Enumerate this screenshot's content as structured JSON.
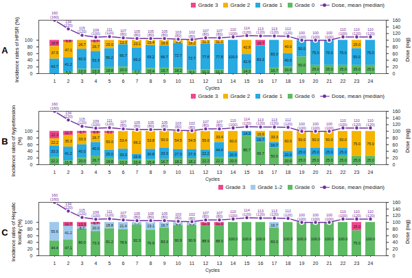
{
  "chart_data": [
    {
      "type": "bar",
      "title": "A",
      "stacked": true,
      "data_labels": true,
      "x_label": "Cycles",
      "y_label": "Incidence rates of HFSR (%)",
      "y2_label": "Dose (mg)",
      "categories": [
        1,
        2,
        3,
        4,
        5,
        6,
        7,
        8,
        9,
        10,
        11,
        12,
        13,
        14,
        15,
        16,
        17,
        18,
        19,
        20,
        21,
        22,
        23,
        24
      ],
      "ylim": [
        0,
        160
      ],
      "yticks": [
        0,
        20,
        40,
        60,
        80,
        100
      ],
      "y2lim": [
        0,
        160
      ],
      "y2ticks": [
        0,
        20,
        40,
        60,
        80,
        100,
        120,
        140,
        160
      ],
      "series": [
        {
          "name": "Grade 3",
          "color": "#f0468c",
          "values": [
            18.8,
            5.8,
            0,
            6.7,
            0,
            0,
            0,
            0,
            0,
            0,
            0,
            0,
            0,
            0,
            0,
            16.7,
            0,
            0,
            0,
            0,
            0,
            0,
            0,
            0
          ],
          "value_labels": [
            "18.8",
            "5.8",
            null,
            "6.7",
            null,
            null,
            null,
            null,
            null,
            null,
            null,
            null,
            null,
            null,
            null,
            "16.7",
            null,
            null,
            null,
            null,
            null,
            null,
            null,
            null
          ]
        },
        {
          "name": "Grade 2",
          "color": "#f5b400",
          "values": [
            37.5,
            47.1,
            26.7,
            26.7,
            25.0,
            13.3,
            23.1,
            15.4,
            16.6,
            9.1,
            18.2,
            11.1,
            11.1,
            0,
            42.8,
            0,
            0,
            40.0,
            0,
            0,
            0,
            0,
            25.0,
            0
          ],
          "value_labels": [
            "37.5",
            "47.1",
            "26.7",
            "26.7",
            "25.0",
            "13.3",
            "23.1",
            "15.4",
            "16.6",
            "9.1",
            "18.2",
            "11.1",
            "11.1",
            null,
            "42.8",
            null,
            null,
            "40.0",
            null,
            null,
            null,
            null,
            "25.0",
            null
          ]
        },
        {
          "name": "Grade 1",
          "color": "#27a9e1",
          "values": [
            43.7,
            41.2,
            60.0,
            53.3,
            56.2,
            66.7,
            69.2,
            69.2,
            66.7,
            72.7,
            72.7,
            77.8,
            77.8,
            100.0,
            42.9,
            83.3,
            83.3,
            40.0,
            50.0,
            75.0,
            75.0,
            75.0,
            50.0,
            75.0
          ],
          "value_labels": [
            "43.7",
            "41.2",
            "60.0",
            "53.3",
            "56.2",
            "66.7",
            "69.2",
            "69.2",
            "66.7",
            "72.7",
            "72.7",
            "77.8",
            "77.8",
            "100.0",
            "42.9",
            "83.3",
            "83.3",
            "40.0",
            "50.0",
            "75.0",
            "75.0",
            "75.0",
            "50.0",
            "75.0"
          ]
        },
        {
          "name": "Grade 0",
          "color": "#5dbb63",
          "values": [
            0,
            5.9,
            13.3,
            13.3,
            18.8,
            20.0,
            7.7,
            15.4,
            16.7,
            18.2,
            9.1,
            11.1,
            11.1,
            0,
            14.3,
            0,
            16.7,
            20.0,
            50.0,
            25.0,
            25.0,
            25.0,
            25.0,
            25.0
          ],
          "value_labels": [
            null,
            "5.9",
            "13.3",
            "13.3",
            "18.8",
            "20.0",
            "7.7",
            "15.4",
            "16.7",
            "18.2",
            "9.1",
            "11.1",
            "11.1",
            null,
            "14.3",
            null,
            "16.7",
            "20.0",
            "50.0",
            "25.0",
            "25.0",
            "25.0",
            "25.0",
            "25.0"
          ]
        },
        {
          "name": "Dose, mean (median)",
          "type": "line",
          "axis": "y2",
          "color": "#7030a0",
          "marker": "circle",
          "values": [
            160,
            134,
            115,
            109,
            111,
            107,
            105,
            105,
            105,
            103,
            102,
            107,
            107,
            110,
            114,
            113,
            113,
            112,
            100,
            100,
            100,
            110,
            110,
            110
          ],
          "value_labels": [
            "160 (160)",
            "134 (120)",
            "115 (120)",
            "109 (100)",
            "111 (120)",
            "107 (80)",
            "105 (80)",
            "105 (80)",
            "105 (80)",
            "103 (80)",
            "102 (80)",
            "107 (80)",
            "107 (80)",
            "110 (100)",
            "114 (120)",
            "113 (120)",
            "113 (120)",
            "112 (120)",
            "100 (100)",
            "100 (100)",
            "100 (100)",
            "110 (100)",
            "110 (120)",
            "110 (120)"
          ]
        }
      ]
    },
    {
      "type": "bar",
      "title": "B",
      "stacked": true,
      "data_labels": true,
      "x_label": "Cycles",
      "y_label": "Incidence rates of hypertension (%)",
      "y2_label": "Dose (mg)",
      "categories": [
        1,
        2,
        3,
        4,
        5,
        6,
        7,
        8,
        9,
        10,
        11,
        12,
        13,
        14,
        15,
        16,
        17,
        18,
        19,
        20,
        21,
        22,
        23,
        24
      ],
      "ylim": [
        0,
        160
      ],
      "yticks": [
        0,
        20,
        40,
        60,
        80,
        100
      ],
      "y2lim": [
        0,
        160
      ],
      "y2ticks": [
        0,
        20,
        40,
        60,
        80,
        100,
        120,
        140,
        160
      ],
      "series": [
        {
          "name": "Grade 3",
          "color": "#f0468c",
          "values": [
            22.3,
            11.7,
            6.7,
            6.6,
            6.2,
            0,
            0,
            0,
            0,
            0,
            0,
            0,
            0,
            0,
            0,
            0,
            0,
            0,
            0,
            0,
            0,
            0,
            0,
            0
          ],
          "value_labels": [
            "22.3",
            "11.7",
            "6.7",
            "6.6",
            "6.2",
            null,
            null,
            null,
            null,
            null,
            null,
            null,
            null,
            null,
            null,
            null,
            null,
            null,
            null,
            null,
            null,
            null,
            null,
            null
          ]
        },
        {
          "name": "Grade 2",
          "color": "#f5b400",
          "values": [
            22.2,
            35.3,
            33.3,
            26.7,
            50.0,
            53.4,
            69.2,
            53.8,
            50.0,
            54.5,
            54.5,
            55.6,
            33.4,
            60.0,
            0,
            16.6,
            33.3,
            60.0,
            50.0,
            50.0,
            50.0,
            50.0,
            75.0,
            75.0
          ],
          "value_labels": [
            "22.2",
            "35.3",
            "33.3",
            "26.7",
            "50.0",
            "53.4",
            "69.2",
            "53.8",
            "50.0",
            "54.5",
            "54.5",
            "55.6",
            "33.4",
            "60.0",
            null,
            "16.6",
            "33.3",
            "60.0",
            "50.0",
            "50.0",
            "50.0",
            "50.0",
            "75.0",
            "75.0"
          ]
        },
        {
          "name": "Grade 1",
          "color": "#27a9e1",
          "values": [
            33.3,
            41.2,
            40.0,
            40.0,
            25.0,
            33.3,
            15.4,
            30.8,
            33.3,
            27.3,
            27.3,
            22.2,
            44.4,
            20.0,
            14.3,
            16.7,
            16.7,
            20.0,
            25.0,
            25.0,
            25.0,
            25.0,
            0,
            0
          ],
          "value_labels": [
            "33.3",
            "41.2",
            "40.0",
            "40.0",
            "25.0",
            "33.3",
            "15.4",
            "30.8",
            "33.3",
            "27.3",
            "27.3",
            "22.2",
            "44.4",
            "20.0",
            "14.3",
            "16.7",
            "16.7",
            "20.0",
            "25.0",
            "25.0",
            "25.0",
            "25.0",
            null,
            null
          ]
        },
        {
          "name": "Grade 0",
          "color": "#5dbb63",
          "values": [
            22.2,
            11.8,
            20.0,
            26.7,
            18.8,
            13.3,
            15.4,
            15.4,
            16.7,
            18.2,
            18.2,
            22.2,
            22.2,
            20.0,
            85.7,
            66.7,
            50.0,
            20.0,
            25.0,
            25.0,
            25.0,
            25.0,
            25.0,
            25.0
          ],
          "value_labels": [
            "22.2",
            "11.8",
            "20.0",
            "26.7",
            "18.8",
            "13.3",
            "15.4",
            "15.4",
            "16.7",
            "18.2",
            "18.2",
            "22.2",
            "22.2",
            "20.0",
            "85.7",
            "66.7",
            "50.0",
            "20.0",
            "25.0",
            "25.0",
            "25.0",
            "25.0",
            "25.0",
            "25.0"
          ]
        },
        {
          "name": "Dose, mean (median)",
          "type": "line",
          "axis": "y2",
          "color": "#7030a0",
          "marker": "circle",
          "values": [
            160,
            134,
            115,
            109,
            111,
            107,
            105,
            105,
            105,
            103,
            102,
            107,
            107,
            110,
            114,
            113,
            113,
            112,
            100,
            100,
            100,
            110,
            110,
            110
          ],
          "value_labels": [
            "160 (160)",
            "134 (120)",
            "115 (120)",
            "109 (100)",
            "111 (120)",
            "107 (80)",
            "105 (80)",
            "105 (80)",
            "105 (80)",
            "103 (80)",
            "102 (80)",
            "107 (80)",
            "107 (80)",
            "110 (100)",
            "114 (120)",
            "113 (120)",
            "113 (120)",
            "112 (120)",
            "100 (100)",
            "100 (100)",
            "100 (100)",
            "110 (100)",
            "110 (120)",
            "110 (120)"
          ]
        }
      ]
    },
    {
      "type": "bar",
      "title": "C",
      "stacked": true,
      "data_labels": true,
      "x_label": "Cycles",
      "y_label": "Incidence rates of Hepatic toxicity (%)",
      "y2_label": "Dose (mg)",
      "categories": [
        1,
        2,
        3,
        4,
        5,
        6,
        7,
        8,
        9,
        10,
        11,
        12,
        13,
        14,
        15,
        16,
        17,
        18,
        19,
        20,
        21,
        22,
        23,
        24
      ],
      "ylim": [
        0,
        160
      ],
      "yticks": [
        0,
        20,
        40,
        60,
        80,
        100
      ],
      "y2lim": [
        0,
        160
      ],
      "y2ticks": [
        0,
        20,
        40,
        60,
        80,
        100,
        120,
        140,
        160
      ],
      "series": [
        {
          "name": "Grade 3",
          "color": "#f0468c",
          "values": [
            0,
            11.7,
            13.3,
            6.7,
            0,
            0,
            0,
            0,
            0,
            0,
            0,
            11.1,
            11.1,
            0,
            0,
            0,
            0,
            0,
            0,
            0,
            0,
            0,
            25.0,
            0
          ],
          "value_labels": [
            null,
            "11.7",
            "13.3",
            "6.7",
            null,
            null,
            null,
            null,
            null,
            null,
            null,
            "11.1",
            "11.1",
            null,
            null,
            null,
            null,
            null,
            null,
            null,
            null,
            null,
            "25.0",
            null
          ]
        },
        {
          "name": "Grade 1-2",
          "color": "#9ec9ec",
          "values": [
            55.6,
            41.2,
            6.7,
            20.0,
            18.8,
            21.4,
            7.7,
            23.1,
            16.7,
            9.1,
            9.1,
            0,
            0,
            0,
            0,
            0,
            16.7,
            0,
            0,
            0,
            0,
            0,
            0,
            0
          ],
          "value_labels": [
            "55.6",
            "41.2",
            "6.7",
            "20.0",
            "18.8",
            "21.4",
            "7.7",
            "23.1",
            "16.7",
            "9.1",
            "9.1",
            null,
            null,
            null,
            null,
            null,
            "16.7",
            null,
            null,
            null,
            null,
            null,
            null,
            null
          ]
        },
        {
          "name": "Grade 0",
          "color": "#5dbb63",
          "values": [
            44.4,
            47.1,
            80.0,
            73.3,
            81.2,
            78.6,
            92.3,
            76.9,
            83.3,
            90.9,
            90.9,
            88.9,
            88.9,
            100.0,
            100.0,
            100.0,
            83.3,
            100.0,
            100.0,
            100.0,
            100.0,
            100.0,
            75.0,
            100.0
          ],
          "value_labels": [
            "44.4",
            "47.1",
            "80.0",
            "73.3",
            "81.2",
            "78.6",
            "92.3",
            "76.9",
            "83.3",
            "90.9",
            "90.9",
            "88.9",
            "88.9",
            "100.0",
            "100.0",
            "100.0",
            "83.3",
            "100.0",
            "100.0",
            "100.0",
            "100.0",
            "100.0",
            "75.0",
            "100.0"
          ]
        },
        {
          "name": "Dose, mean (median)",
          "type": "line",
          "axis": "y2",
          "color": "#7030a0",
          "marker": "circle",
          "values": [
            160,
            134,
            115,
            109,
            111,
            107,
            105,
            105,
            105,
            103,
            102,
            107,
            107,
            110,
            114,
            113,
            113,
            112,
            100,
            100,
            100,
            110,
            110,
            110
          ],
          "value_labels": [
            "160 (160)",
            "134 (120)",
            "115 (120)",
            "109 (100)",
            "111 (120)",
            "107 (80)",
            "105 (80)",
            "105 (80)",
            "105 (80)",
            "103 (80)",
            "102 (80)",
            "107 (80)",
            "107 (80)",
            "110 (100)",
            "114 (120)",
            "113 (120)",
            "113 (120)",
            "112 (120)",
            "100 (100)",
            "100 (100)",
            "100 (100)",
            "110 (100)",
            "110 (120)",
            "110 (120)"
          ]
        }
      ]
    }
  ]
}
